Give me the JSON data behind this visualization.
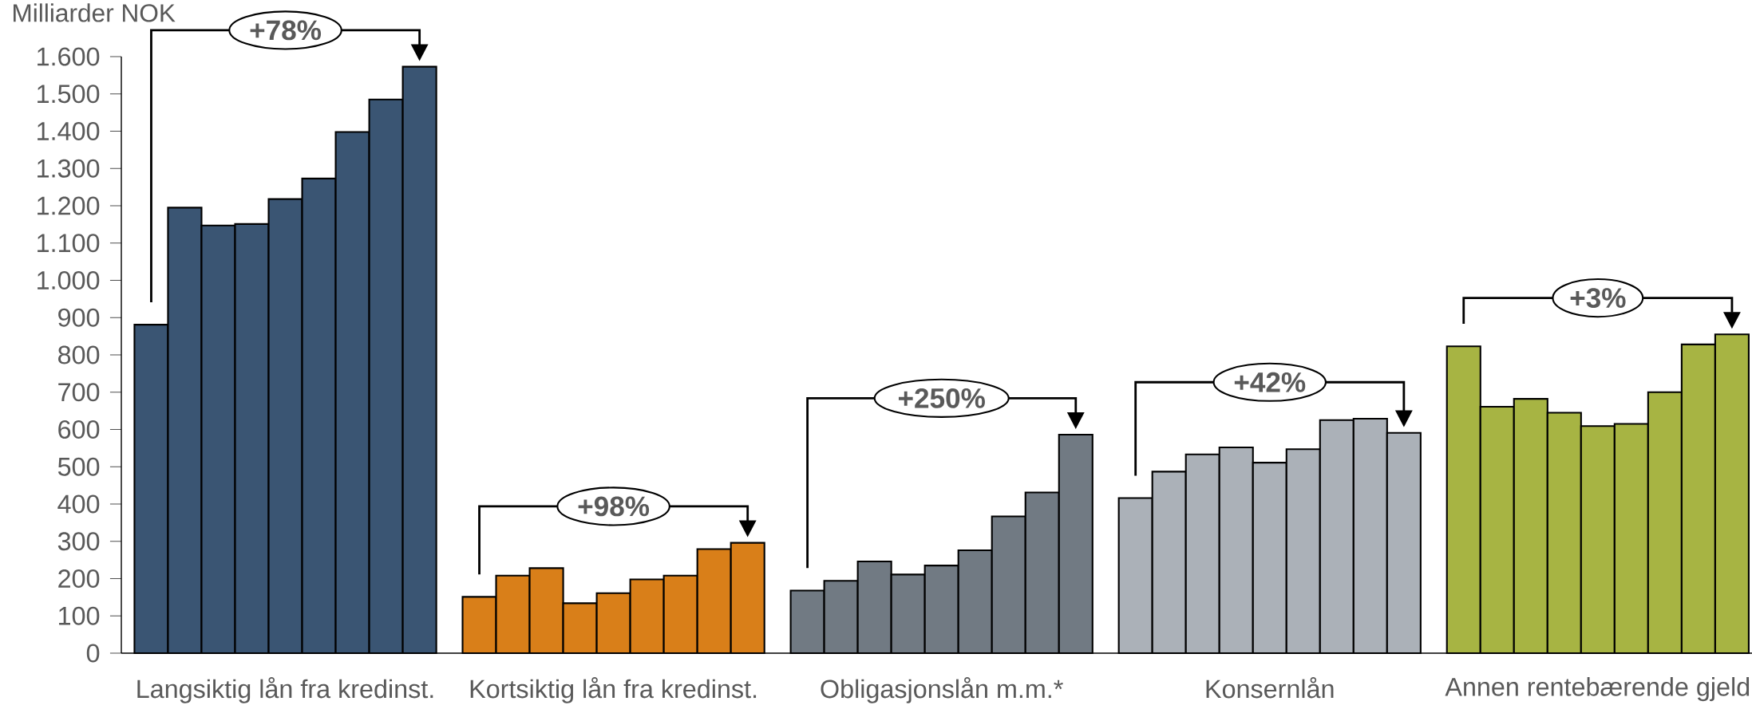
{
  "chart_data": {
    "type": "bar",
    "ylabel": "Milliarder NOK",
    "categories": [
      "Langsiktig lån fra kredinst.",
      "Kortsiktig lån fra kredinst.",
      "Obligasjonslån m.m.*",
      "Konsernlån",
      "Annen rentebærende gjeld"
    ],
    "series": [
      {
        "colors": [
          "#3a5573",
          "#d97f19",
          "#717a83",
          "#abb1b8",
          "#a7b443"
        ],
        "values": [
          881,
          151,
          168,
          416,
          823
        ]
      },
      {
        "colors": [
          "#3a5573",
          "#d97f19",
          "#717a83",
          "#abb1b8",
          "#a7b443"
        ],
        "values": [
          1195,
          208,
          194,
          487,
          661
        ]
      },
      {
        "colors": [
          "#3a5573",
          "#d97f19",
          "#717a83",
          "#abb1b8",
          "#a7b443"
        ],
        "values": [
          1147,
          228,
          246,
          533,
          682
        ]
      },
      {
        "colors": [
          "#3a5573",
          "#d97f19",
          "#717a83",
          "#abb1b8",
          "#a7b443"
        ],
        "values": [
          1151,
          134,
          211,
          552,
          645
        ]
      },
      {
        "colors": [
          "#3a5573",
          "#d97f19",
          "#717a83",
          "#abb1b8",
          "#a7b443"
        ],
        "values": [
          1218,
          161,
          235,
          511,
          609
        ]
      },
      {
        "colors": [
          "#3a5573",
          "#d97f19",
          "#717a83",
          "#abb1b8",
          "#a7b443"
        ],
        "values": [
          1273,
          198,
          276,
          547,
          615
        ]
      },
      {
        "colors": [
          "#3a5573",
          "#d97f19",
          "#717a83",
          "#abb1b8",
          "#a7b443"
        ],
        "values": [
          1398,
          208,
          367,
          625,
          700
        ]
      },
      {
        "colors": [
          "#3a5573",
          "#d97f19",
          "#717a83",
          "#abb1b8",
          "#a7b443"
        ],
        "values": [
          1485,
          279,
          431,
          629,
          828
        ]
      },
      {
        "colors": [
          "#3a5573",
          "#d97f19",
          "#717a83",
          "#abb1b8",
          "#a7b443"
        ],
        "values": [
          1573,
          296,
          586,
          591,
          855
        ]
      }
    ],
    "ylim": [
      0,
      1600
    ],
    "yticks": [
      0,
      100,
      200,
      300,
      400,
      500,
      600,
      700,
      800,
      900,
      {
        "value": 1000,
        "label": "1.000"
      },
      {
        "value": 1100,
        "label": "1.100"
      },
      {
        "value": 1200,
        "label": "1.200"
      },
      {
        "value": 1300,
        "label": "1.300"
      },
      {
        "value": 1400,
        "label": "1.400"
      },
      {
        "value": 1500,
        "label": "1.500"
      },
      {
        "value": 1600,
        "label": "1.600"
      }
    ],
    "annotations": [
      "+78%",
      "+98%",
      "+250%",
      "+42%",
      "+3%"
    ]
  }
}
